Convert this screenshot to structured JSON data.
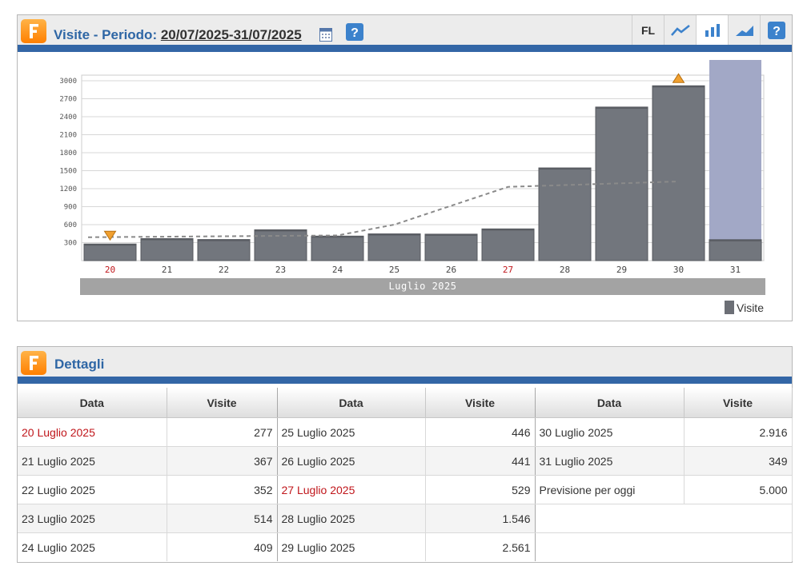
{
  "chart_panel": {
    "title_prefix": "Visite - Periodo: ",
    "period": "20/07/2025-31/07/2025",
    "toolbar": {
      "fl_label": "FL"
    }
  },
  "chart_data": {
    "type": "bar",
    "categories": [
      "20",
      "21",
      "22",
      "23",
      "24",
      "25",
      "26",
      "27",
      "28",
      "29",
      "30",
      "31"
    ],
    "red_categories": [
      "20",
      "27"
    ],
    "series": [
      {
        "name": "Visite",
        "values": [
          277,
          367,
          352,
          514,
          409,
          446,
          441,
          529,
          1546,
          2561,
          2916,
          349
        ]
      }
    ],
    "forecast_today": 5000,
    "trend_line": [
      {
        "x": "20",
        "y": 390
      },
      {
        "x": "24",
        "y": 420
      },
      {
        "x": "25",
        "y": 600
      },
      {
        "x": "27",
        "y": 1230
      },
      {
        "x": "30",
        "y": 1320
      }
    ],
    "markers": [
      {
        "x": "20",
        "type": "min"
      },
      {
        "x": "30",
        "type": "max"
      }
    ],
    "yticks": [
      300,
      600,
      900,
      1200,
      1500,
      1800,
      2100,
      2400,
      2700,
      3000
    ],
    "ylim": [
      0,
      3000
    ],
    "xgroup_label": "Luglio 2025",
    "legend": "Visite",
    "colors": {
      "bar": "#72767d",
      "forecast": "#a2a8c6",
      "red_label": "#c0161b",
      "trend": "#8a8a8a"
    }
  },
  "details": {
    "title": "Dettagli",
    "headers": [
      "Data",
      "Visite",
      "Data",
      "Visite",
      "Data",
      "Visite"
    ],
    "rows": [
      [
        {
          "d": "20 Luglio 2025",
          "v": "277",
          "red": true
        },
        {
          "d": "25 Luglio 2025",
          "v": "446"
        },
        {
          "d": "30 Luglio 2025",
          "v": "2.916"
        }
      ],
      [
        {
          "d": "21 Luglio 2025",
          "v": "367"
        },
        {
          "d": "26 Luglio 2025",
          "v": "441"
        },
        {
          "d": "31 Luglio 2025",
          "v": "349"
        }
      ],
      [
        {
          "d": "22 Luglio 2025",
          "v": "352"
        },
        {
          "d": "27 Luglio 2025",
          "v": "529",
          "red": true
        },
        {
          "d": "Previsione per oggi",
          "v": "5.000"
        }
      ],
      [
        {
          "d": "23 Luglio 2025",
          "v": "514"
        },
        {
          "d": "28 Luglio 2025",
          "v": "1.546"
        },
        {
          "d": "",
          "v": ""
        }
      ],
      [
        {
          "d": "24 Luglio 2025",
          "v": "409"
        },
        {
          "d": "29 Luglio 2025",
          "v": "2.561"
        },
        {
          "d": "",
          "v": ""
        }
      ]
    ]
  }
}
